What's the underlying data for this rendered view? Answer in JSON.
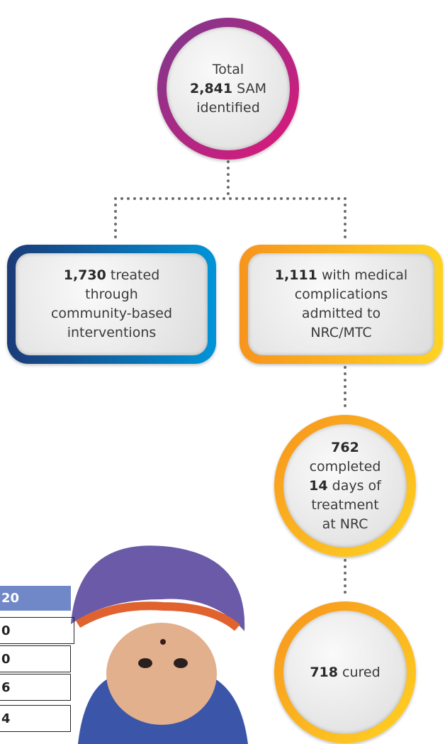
{
  "nodes": [
    {
      "lines": [
        [
          {
            "text": "Total",
            "bold": false
          }
        ],
        [
          {
            "text": "2,841",
            "bold": true
          },
          {
            "text": " SAM",
            "bold": false
          }
        ],
        [
          {
            "text": "identified",
            "bold": false
          }
        ]
      ]
    },
    {
      "lines": [
        [
          {
            "text": "1,730",
            "bold": true
          },
          {
            "text": " treated",
            "bold": false
          }
        ],
        [
          {
            "text": "through",
            "bold": false
          }
        ],
        [
          {
            "text": "community-based",
            "bold": false
          }
        ],
        [
          {
            "text": "interventions",
            "bold": false
          }
        ]
      ]
    },
    {
      "lines": [
        [
          {
            "text": "1,111",
            "bold": true
          },
          {
            "text": " with medical",
            "bold": false
          }
        ],
        [
          {
            "text": "complications",
            "bold": false
          }
        ],
        [
          {
            "text": "admitted to",
            "bold": false
          }
        ],
        [
          {
            "text": "NRC/MTC",
            "bold": false
          }
        ]
      ]
    },
    {
      "lines": [
        [
          {
            "text": "762",
            "bold": true
          }
        ],
        [
          {
            "text": "completed",
            "bold": false
          }
        ],
        [
          {
            "text": "14",
            "bold": true
          },
          {
            "text": " days of",
            "bold": false
          }
        ],
        [
          {
            "text": "treatment",
            "bold": false
          }
        ],
        [
          {
            "text": "at NRC",
            "bold": false
          }
        ]
      ]
    },
    {
      "lines": [
        [
          {
            "text": "718",
            "bold": true
          },
          {
            "text": " cured",
            "bold": false
          }
        ]
      ]
    }
  ],
  "table": {
    "header": "20",
    "rows": [
      "0",
      "0",
      "6",
      "4"
    ]
  }
}
